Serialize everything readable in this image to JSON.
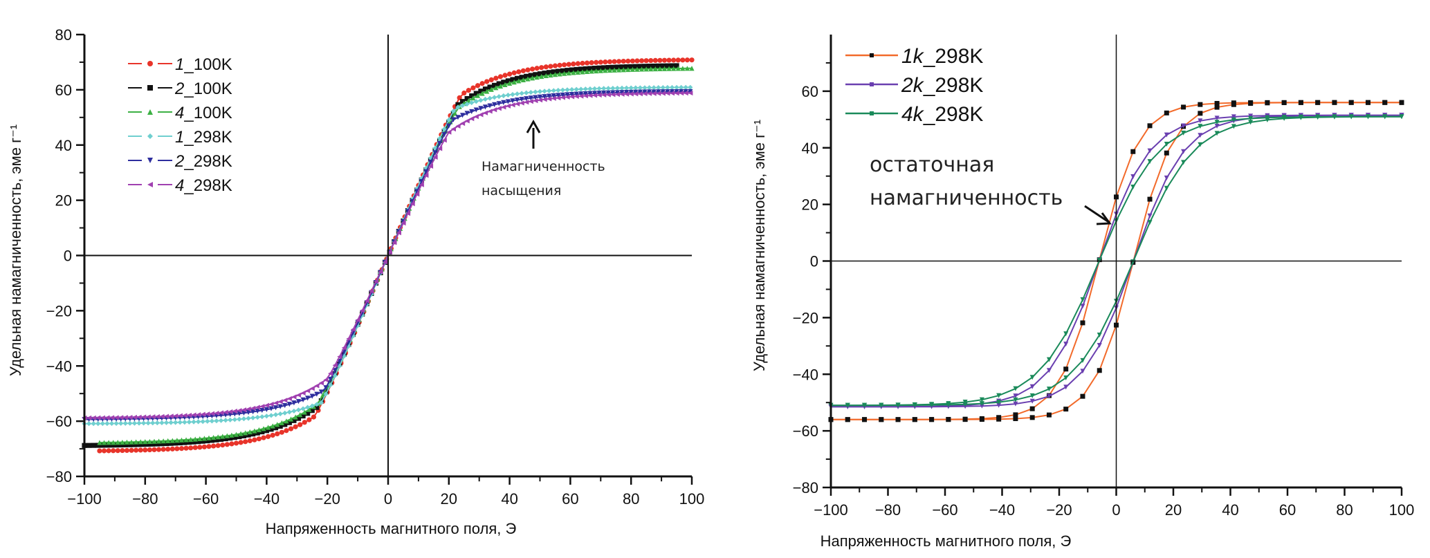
{
  "chart_data": [
    {
      "type": "line",
      "title": "",
      "xlabel": "Напряженность магнитного поля, Э",
      "ylabel": "Удельная намагниченность,  эме г⁻¹",
      "xlim": [
        -100,
        100
      ],
      "ylim": [
        -80,
        80
      ],
      "xticks": [
        -100,
        -80,
        -60,
        -40,
        -20,
        0,
        20,
        40,
        60,
        80,
        100
      ],
      "yticks": [
        -80,
        -60,
        -40,
        -20,
        0,
        20,
        40,
        60,
        80
      ],
      "xtick_labels": [
        "−100",
        "−80",
        "−60",
        "−40",
        "−20",
        "0",
        "20",
        "40",
        "60",
        "80",
        "100"
      ],
      "ytick_labels": [
        "−80",
        "−60",
        "−40",
        "−20",
        "0",
        "20",
        "40",
        "60",
        "80"
      ],
      "legend_position": "top-left",
      "grid": false,
      "annotation": {
        "text_line1": "Намагниченность",
        "text_line2": "насыщения",
        "arrow": "up",
        "target_x": 49,
        "target_y": 48
      },
      "series": [
        {
          "name_num": "1",
          "name_suffix": "_100K",
          "color": "#e8342a",
          "marker": "circle",
          "x_range": [
            -95,
            100
          ],
          "saturation": 71,
          "knee": 24,
          "initial_slope": 2.55
        },
        {
          "name_num": "2",
          "name_suffix": "_100K",
          "color": "#111111",
          "marker": "square",
          "x_range": [
            -100,
            95
          ],
          "saturation": 69,
          "knee": 23,
          "initial_slope": 2.5
        },
        {
          "name_num": "4",
          "name_suffix": "_100K",
          "color": "#3cb043",
          "marker": "triangle-up",
          "x_range": [
            -95,
            100
          ],
          "saturation": 68,
          "knee": 23,
          "initial_slope": 2.45
        },
        {
          "name_num": "1",
          "name_suffix": "_298K",
          "color": "#6fcfcf",
          "marker": "diamond",
          "x_range": [
            -100,
            100
          ],
          "saturation": 61,
          "knee": 22,
          "initial_slope": 2.55
        },
        {
          "name_num": "2",
          "name_suffix": "_298K",
          "color": "#2e2e9e",
          "marker": "triangle-down",
          "x_range": [
            -100,
            100
          ],
          "saturation": 59.5,
          "knee": 21,
          "initial_slope": 2.45
        },
        {
          "name_num": "4",
          "name_suffix": "_298K",
          "color": "#a040b0",
          "marker": "triangle-left",
          "x_range": [
            -100,
            100
          ],
          "saturation": 59,
          "knee": 20,
          "initial_slope": 2.35
        }
      ]
    },
    {
      "type": "line",
      "title": "",
      "xlabel": "Напряженность магнитного поля, Э",
      "ylabel": "Удельная намагниченность,  эме г⁻¹",
      "xlim": [
        -100,
        100
      ],
      "ylim": [
        -80,
        80
      ],
      "xticks": [
        -100,
        -80,
        -60,
        -40,
        -20,
        0,
        20,
        40,
        60,
        80,
        100
      ],
      "yticks": [
        -80,
        -60,
        -40,
        -20,
        0,
        20,
        40,
        60
      ],
      "xtick_labels": [
        "−100",
        "−80",
        "−60",
        "−40",
        "−20",
        "0",
        "20",
        "40",
        "60",
        "80",
        "100"
      ],
      "ytick_labels": [
        "−80",
        "−60",
        "−40",
        "−20",
        "0",
        "20",
        "40",
        "60"
      ],
      "legend_position": "top-left",
      "grid": false,
      "annotation": {
        "text_line1": "остаточная",
        "text_line2": "намагниченность",
        "arrow": "down-right",
        "target_x": 0,
        "target_y": 12
      },
      "series": [
        {
          "name_num": "1k",
          "name_suffix": "_298K",
          "color": "#f26a2a",
          "marker_color": "#111111",
          "marker": "square",
          "saturation": 56,
          "coercivity": 6,
          "remanence": 12,
          "points_per_branch": 34
        },
        {
          "name_num": "2k",
          "name_suffix": "_298K",
          "color": "#6a3fb0",
          "marker_color": "#6a3fb0",
          "marker": "triangle-down",
          "saturation": 51.5,
          "coercivity": 6,
          "remanence": 9,
          "points_per_branch": 34
        },
        {
          "name_num": "4k",
          "name_suffix": "_298K",
          "color": "#1a8a5a",
          "marker_color": "#1a8a5a",
          "marker": "triangle-down",
          "saturation": 51,
          "coercivity": 6,
          "remanence": 8,
          "points_per_branch": 34
        }
      ]
    }
  ]
}
